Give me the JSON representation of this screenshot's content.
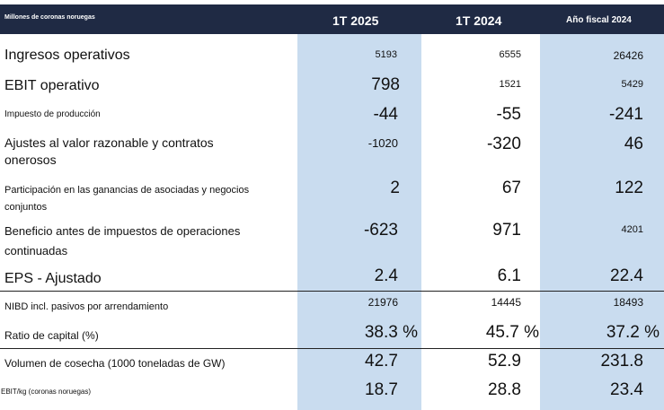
{
  "header": {
    "units": "Millones de coronas noruegas",
    "col1": "1T 2025",
    "col2": "1T 2024",
    "col3": "Año fiscal 2024"
  },
  "rows": [
    {
      "label": "Ingresos operativos",
      "v1": "5193",
      "v2": "6555",
      "v3": "26426"
    },
    {
      "label": "EBIT operativo",
      "v1": "798",
      "v2": "1521",
      "v3": "5429"
    },
    {
      "label": "Impuesto de producción",
      "v1": "-44",
      "v2": "-55",
      "v3": "-241"
    },
    {
      "label": "Ajustes al valor razonable y contratos onerosos",
      "v1": "-1020",
      "v2": "-320",
      "v3": "46"
    },
    {
      "label": "Participación en las ganancias de asociadas y negocios conjuntos",
      "v1": "2",
      "v2": "67",
      "v3": "122"
    },
    {
      "label": "Beneficio antes de impuestos de operaciones continuadas",
      "v1": "-623",
      "v2": "971",
      "v3": "4201"
    },
    {
      "label": "EPS - Ajustado",
      "v1": "2.4",
      "v2": "6.1",
      "v3": "22.4"
    },
    {
      "label": "NIBD incl. pasivos por arrendamiento",
      "v1": "21976",
      "v2": "14445",
      "v3": "18493"
    },
    {
      "label": "Ratio de capital (%)",
      "v1": "38.3 %",
      "v2": "45.7 %",
      "v3": "37.2 %"
    },
    {
      "label": "Volumen de cosecha (1000 toneladas de GW)",
      "v1": "42.7",
      "v2": "52.9",
      "v3": "231.8"
    },
    {
      "label": "EBIT/kg (coronas noruegas)",
      "v1": "18.7",
      "v2": "28.8",
      "v3": "23.4"
    }
  ]
}
